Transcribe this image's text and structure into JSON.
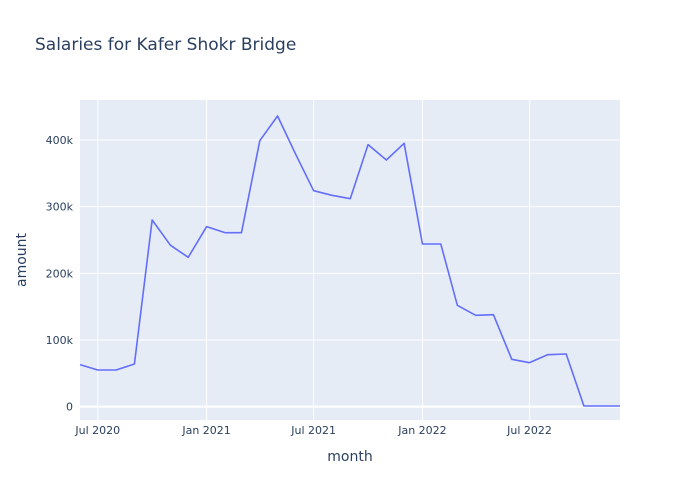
{
  "chart_data": {
    "type": "line",
    "title": "Salaries for Kafer Shokr Bridge",
    "xlabel": "month",
    "ylabel": "amount",
    "x_tick_labels": [
      "Jul 2020",
      "Jan 2021",
      "Jul 2021",
      "Jan 2022",
      "Jul 2022"
    ],
    "x_tick_dates": [
      "2020-07-01",
      "2021-01-01",
      "2021-07-01",
      "2022-01-01",
      "2022-07-01"
    ],
    "y_tick_labels": [
      "0",
      "100k",
      "200k",
      "300k",
      "400k"
    ],
    "y_tick_values": [
      0,
      100000,
      200000,
      300000,
      400000
    ],
    "xlim": [
      "2020-06-01",
      "2022-12-01"
    ],
    "ylim": [
      -20000,
      460000
    ],
    "grid": true,
    "colors": {
      "plot_background": "#e5ecf6",
      "grid": "#ffffff",
      "line": "#636efa",
      "text": "#2a3f5f"
    },
    "series": [
      {
        "x": [
          "2020-06-01",
          "2020-07-01",
          "2020-08-01",
          "2020-09-01",
          "2020-10-01",
          "2020-11-01",
          "2020-12-01",
          "2021-01-01",
          "2021-02-01",
          "2021-03-01",
          "2021-04-01",
          "2021-05-01",
          "2021-06-01",
          "2021-07-01",
          "2021-08-01",
          "2021-09-01",
          "2021-10-01",
          "2021-11-01",
          "2021-12-01",
          "2022-01-01",
          "2022-02-01",
          "2022-03-01",
          "2022-04-01",
          "2022-05-01",
          "2022-06-01",
          "2022-07-01",
          "2022-08-01",
          "2022-09-01",
          "2022-10-01",
          "2022-11-01",
          "2022-12-01"
        ],
        "values": [
          63000,
          55000,
          55000,
          64000,
          280000,
          242000,
          224000,
          270000,
          261000,
          261000,
          399000,
          436000,
          378000,
          324000,
          317000,
          312000,
          393000,
          370000,
          395000,
          244000,
          244000,
          152000,
          137000,
          138000,
          71000,
          66000,
          78000,
          79000,
          1000,
          1000,
          1000
        ]
      }
    ]
  }
}
